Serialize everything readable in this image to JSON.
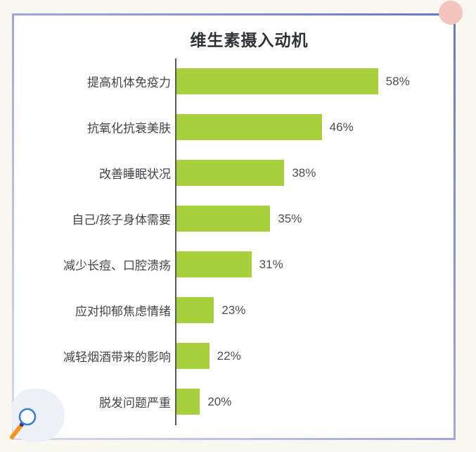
{
  "card": {
    "background": "#ffffff",
    "border_gradient": [
      "#6b75cb",
      "#d8dbea"
    ],
    "page_background": "#f8f8f1"
  },
  "chart_data": {
    "type": "bar",
    "orientation": "horizontal",
    "title": "维生素摄入动机",
    "categories": [
      "提高机体免疫力",
      "抗氧化抗衰美肤",
      "改善睡眠状况",
      "自己/孩子身体需要",
      "减少长痘、口腔溃疡",
      "应对抑郁焦虑情绪",
      "减轻烟酒带来的影响",
      "脱发问题严重"
    ],
    "values": [
      58,
      46,
      38,
      35,
      31,
      23,
      22,
      20
    ],
    "value_labels": [
      "58%",
      "46%",
      "38%",
      "35%",
      "31%",
      "23%",
      "22%",
      "20%"
    ],
    "xlabel": "",
    "ylabel": "",
    "xlim": [
      15,
      60
    ],
    "grid": false,
    "legend": false,
    "bar_color": "#a8cf3c",
    "axis_color": "#57585a",
    "label_color": "#454549",
    "value_color": "#4d4e52",
    "title_color": "#303136"
  },
  "decorations": {
    "pink_circle_color": "#f3c5bc",
    "blob_color": "#eef0f8",
    "magnifier": {
      "ring_color": "#3a7fd5",
      "handle_color": "#f7941d",
      "joint_color": "#2c3d92"
    }
  }
}
